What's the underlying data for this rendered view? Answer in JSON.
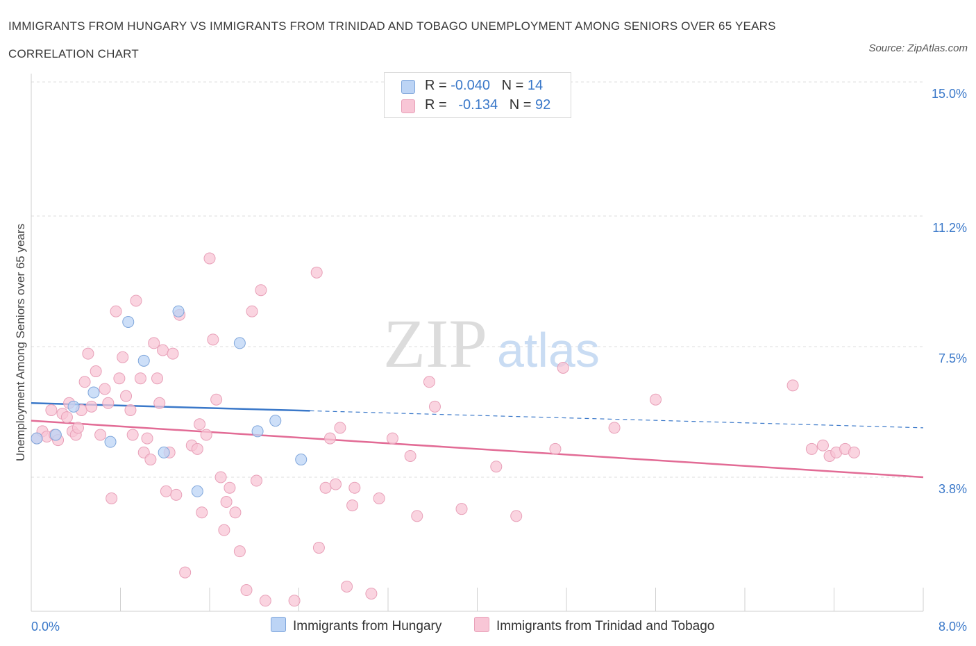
{
  "header": {
    "title": "IMMIGRANTS FROM HUNGARY VS IMMIGRANTS FROM TRINIDAD AND TOBAGO UNEMPLOYMENT AMONG SENIORS OVER 65 YEARS CORRELATION CHART",
    "source": "Source: ZipAtlas.com"
  },
  "watermark": {
    "zip": "ZIP",
    "atlas": "atlas"
  },
  "legend": {
    "rows": [
      {
        "r_label": "R = ",
        "r_value": "-0.040",
        "n_label": "N = ",
        "n_value": "14"
      },
      {
        "r_label": "R = ",
        "r_value": "-0.134",
        "n_label": "N = ",
        "n_value": "92"
      }
    ]
  },
  "bottom_legend": {
    "hungary": "Immigrants from Hungary",
    "trinidad": "Immigrants from Trinidad and Tobago"
  },
  "colors": {
    "hungary_fill": "#bcd4f5",
    "hungary_stroke": "#7fa6db",
    "hungary_line": "#3a78c9",
    "trinidad_fill": "#f8c6d6",
    "trinidad_stroke": "#e8a0b8",
    "trinidad_line": "#e26b95",
    "tick_text": "#3a78c9",
    "grid": "#dddddd"
  },
  "chart_data": {
    "type": "scatter",
    "title": "IMMIGRANTS FROM HUNGARY VS IMMIGRANTS FROM TRINIDAD AND TOBAGO UNEMPLOYMENT AMONG SENIORS OVER 65 YEARS CORRELATION CHART",
    "xlabel": "",
    "ylabel": "Unemployment Among Seniors over 65 years",
    "xlim": [
      0,
      8.0
    ],
    "ylim": [
      0,
      15.0
    ],
    "x_tick_labels": [
      "0.0%",
      "8.0%"
    ],
    "y_ticks": [
      3.8,
      7.5,
      11.2,
      15.0
    ],
    "y_tick_labels": [
      "3.8%",
      "7.5%",
      "11.2%",
      "15.0%"
    ],
    "grid": true,
    "legend_position": "top-center",
    "series": [
      {
        "name": "Immigrants from Hungary",
        "points": [
          [
            0.05,
            4.9
          ],
          [
            0.22,
            5.0
          ],
          [
            0.38,
            5.8
          ],
          [
            0.56,
            6.2
          ],
          [
            0.71,
            4.8
          ],
          [
            0.87,
            8.2
          ],
          [
            1.01,
            7.1
          ],
          [
            1.19,
            4.5
          ],
          [
            1.32,
            8.5
          ],
          [
            1.49,
            3.4
          ],
          [
            1.87,
            7.6
          ],
          [
            2.03,
            5.1
          ],
          [
            2.19,
            5.4
          ],
          [
            2.42,
            4.3
          ]
        ],
        "trend": {
          "x": [
            0.0,
            8.0
          ],
          "y": [
            5.9,
            5.2
          ],
          "solid_until_x": 2.5
        }
      },
      {
        "name": "Immigrants from Trinidad and Tobago",
        "points": [
          [
            0.05,
            4.9
          ],
          [
            0.1,
            5.1
          ],
          [
            0.14,
            4.95
          ],
          [
            0.18,
            5.7
          ],
          [
            0.21,
            5.0
          ],
          [
            0.24,
            4.85
          ],
          [
            0.28,
            5.6
          ],
          [
            0.32,
            5.5
          ],
          [
            0.34,
            5.9
          ],
          [
            0.37,
            5.1
          ],
          [
            0.4,
            5.0
          ],
          [
            0.42,
            5.2
          ],
          [
            0.45,
            5.7
          ],
          [
            0.48,
            6.5
          ],
          [
            0.51,
            7.3
          ],
          [
            0.54,
            5.8
          ],
          [
            0.58,
            6.8
          ],
          [
            0.62,
            5.0
          ],
          [
            0.66,
            6.3
          ],
          [
            0.69,
            5.9
          ],
          [
            0.72,
            3.2
          ],
          [
            0.76,
            8.5
          ],
          [
            0.79,
            6.6
          ],
          [
            0.82,
            7.2
          ],
          [
            0.85,
            6.1
          ],
          [
            0.89,
            5.7
          ],
          [
            0.91,
            5.0
          ],
          [
            0.94,
            8.8
          ],
          [
            0.98,
            6.6
          ],
          [
            1.01,
            4.5
          ],
          [
            1.04,
            4.9
          ],
          [
            1.07,
            4.3
          ],
          [
            1.1,
            7.6
          ],
          [
            1.13,
            6.6
          ],
          [
            1.15,
            5.9
          ],
          [
            1.18,
            7.4
          ],
          [
            1.21,
            3.4
          ],
          [
            1.24,
            4.5
          ],
          [
            1.27,
            7.3
          ],
          [
            1.3,
            3.3
          ],
          [
            1.33,
            8.4
          ],
          [
            1.38,
            1.1
          ],
          [
            1.44,
            4.7
          ],
          [
            1.49,
            4.6
          ],
          [
            1.51,
            5.3
          ],
          [
            1.53,
            2.8
          ],
          [
            1.57,
            5.0
          ],
          [
            1.6,
            10.0
          ],
          [
            1.63,
            7.7
          ],
          [
            1.66,
            6.0
          ],
          [
            1.7,
            3.8
          ],
          [
            1.73,
            2.3
          ],
          [
            1.75,
            3.1
          ],
          [
            1.78,
            3.5
          ],
          [
            1.83,
            2.8
          ],
          [
            1.87,
            1.7
          ],
          [
            1.93,
            0.6
          ],
          [
            1.98,
            8.5
          ],
          [
            2.02,
            3.7
          ],
          [
            2.06,
            9.1
          ],
          [
            2.1,
            0.3
          ],
          [
            2.36,
            0.3
          ],
          [
            2.56,
            9.6
          ],
          [
            2.58,
            1.8
          ],
          [
            2.64,
            3.5
          ],
          [
            2.68,
            4.9
          ],
          [
            2.73,
            3.6
          ],
          [
            2.77,
            5.2
          ],
          [
            2.83,
            0.7
          ],
          [
            2.88,
            3.0
          ],
          [
            2.9,
            3.5
          ],
          [
            3.05,
            0.5
          ],
          [
            3.12,
            3.2
          ],
          [
            3.24,
            4.9
          ],
          [
            3.4,
            4.4
          ],
          [
            3.46,
            2.7
          ],
          [
            3.57,
            6.5
          ],
          [
            3.62,
            5.8
          ],
          [
            3.86,
            2.9
          ],
          [
            4.17,
            4.1
          ],
          [
            4.35,
            2.7
          ],
          [
            4.7,
            4.6
          ],
          [
            4.77,
            6.9
          ],
          [
            5.23,
            5.2
          ],
          [
            5.6,
            6.0
          ],
          [
            6.83,
            6.4
          ],
          [
            7.0,
            4.6
          ],
          [
            7.1,
            4.7
          ],
          [
            7.16,
            4.4
          ],
          [
            7.22,
            4.5
          ],
          [
            7.3,
            4.6
          ],
          [
            7.38,
            4.5
          ]
        ],
        "trend": {
          "x": [
            0.0,
            8.0
          ],
          "y": [
            5.4,
            3.8
          ]
        }
      }
    ]
  }
}
